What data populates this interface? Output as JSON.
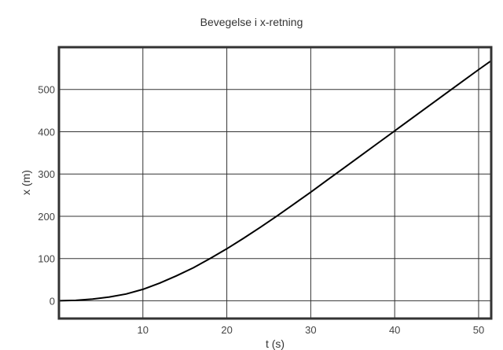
{
  "chart_data": {
    "type": "line",
    "title": "Bevegelse i x-retning",
    "xlabel": "t (s)",
    "ylabel": "x (m)",
    "xlim": [
      0,
      51.5
    ],
    "ylim": [
      -42,
      600
    ],
    "xticks": [
      10,
      20,
      30,
      40,
      50
    ],
    "yticks": [
      0,
      100,
      200,
      300,
      400,
      500
    ],
    "grid": true,
    "legend": "none",
    "line_color": "#000000",
    "grid_color": "#333333",
    "series": [
      {
        "x": [
          0,
          2,
          4,
          6,
          8,
          10,
          12,
          14,
          16,
          18,
          20,
          22,
          24,
          26,
          28,
          30,
          32,
          34,
          36,
          38,
          40,
          42,
          44,
          46,
          48,
          50,
          51.5
        ],
        "values": [
          0,
          1,
          4,
          9,
          16,
          27,
          42,
          59,
          78,
          100,
          123,
          148,
          174,
          201,
          229,
          257,
          286,
          315,
          344,
          373,
          402,
          431,
          460,
          489,
          518,
          547,
          568
        ]
      }
    ]
  }
}
